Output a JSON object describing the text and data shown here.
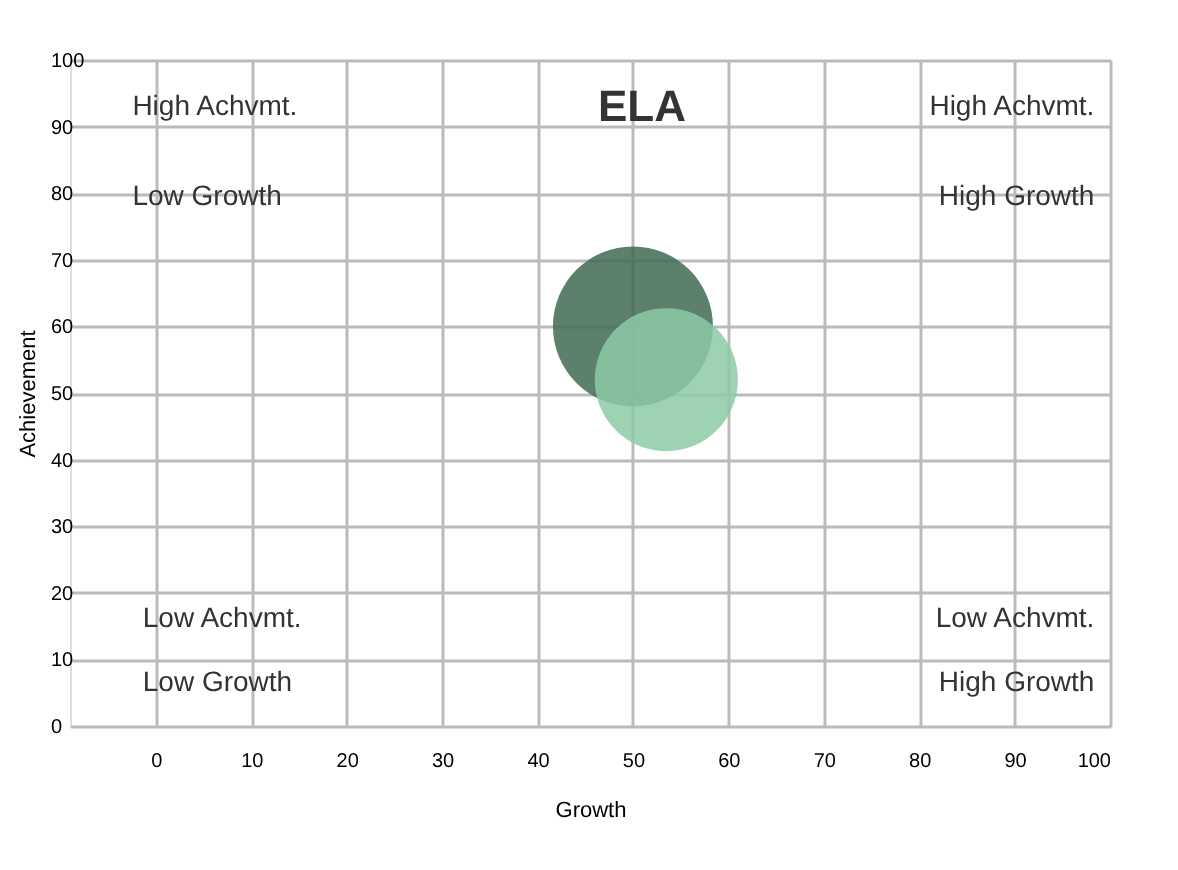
{
  "chart_data": {
    "type": "bubble",
    "title": "ELA",
    "xlabel": "Growth",
    "ylabel": "Achievement",
    "x": [
      50,
      53.5
    ],
    "values": [
      60,
      52
    ],
    "sizes": [
      1,
      0.8
    ],
    "colors": [
      "#3f6a52",
      "#8ccaa6"
    ],
    "xlim": [
      -9,
      100
    ],
    "xticks": [
      0,
      10,
      20,
      30,
      40,
      50,
      60,
      70,
      80,
      90,
      100
    ],
    "ylim": [
      0,
      100
    ],
    "yticks": [
      0,
      10,
      20,
      30,
      40,
      50,
      60,
      70,
      80,
      90,
      100
    ],
    "grid": true,
    "marker": "circle",
    "annotations": [
      "High Achvmt.",
      "Low Growth",
      "High Achvmt.",
      "High Growth",
      "Low Achvmt.",
      "Low Growth",
      "Low Achvmt.",
      "High Growth"
    ]
  }
}
